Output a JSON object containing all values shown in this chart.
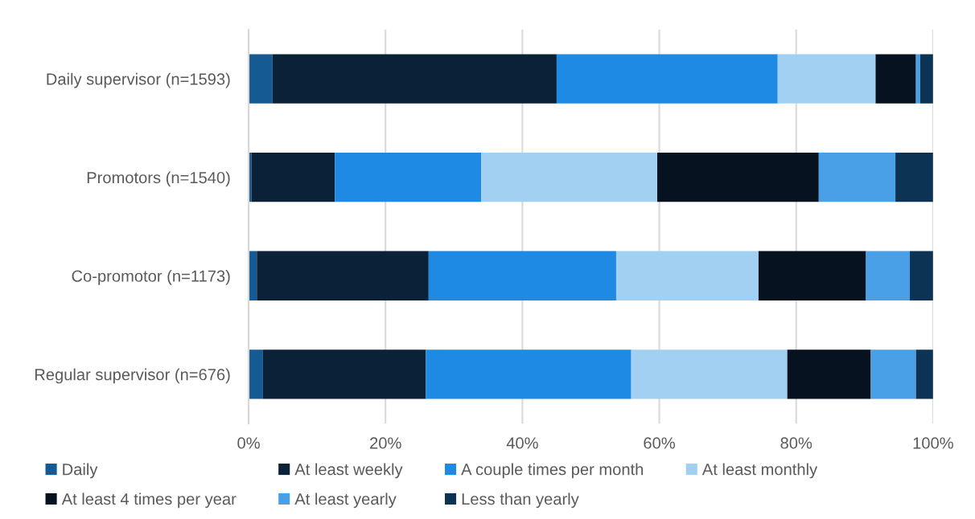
{
  "chart_data": {
    "type": "bar",
    "orientation": "horizontal",
    "stacked": true,
    "categories": [
      "Daily supervisor (n=1593)",
      "Promotors (n=1540)",
      "Co-promotor (n=1173)",
      "Regular supervisor (n=676)"
    ],
    "series": [
      {
        "name": "Daily",
        "color": "#155a93",
        "values": [
          3.5,
          0.4,
          1.2,
          2.1
        ]
      },
      {
        "name": "At least weekly",
        "color": "#0a2138",
        "values": [
          41.5,
          12.2,
          25.1,
          23.8
        ]
      },
      {
        "name": "A couple times per month",
        "color": "#1f8ae3",
        "values": [
          32.3,
          21.4,
          27.4,
          30.0
        ]
      },
      {
        "name": "At least monthly",
        "color": "#a2d0f3",
        "values": [
          14.3,
          25.7,
          20.8,
          22.8
        ]
      },
      {
        "name": "At least 4 times per year",
        "color": "#06121f",
        "values": [
          5.9,
          23.6,
          15.7,
          12.2
        ]
      },
      {
        "name": "At least yearly",
        "color": "#4aa0e6",
        "values": [
          0.6,
          11.2,
          6.4,
          6.6
        ]
      },
      {
        "name": "Less than yearly",
        "color": "#0c3354",
        "values": [
          1.9,
          5.5,
          3.4,
          2.5
        ]
      }
    ],
    "xlim": [
      0,
      100
    ],
    "xticks": [
      {
        "value": 0,
        "label": "0%"
      },
      {
        "value": 20,
        "label": "20%"
      },
      {
        "value": 40,
        "label": "40%"
      },
      {
        "value": 60,
        "label": "60%"
      },
      {
        "value": 80,
        "label": "80%"
      },
      {
        "value": 100,
        "label": "100%"
      }
    ],
    "grid": "x",
    "legend": "bottom"
  }
}
